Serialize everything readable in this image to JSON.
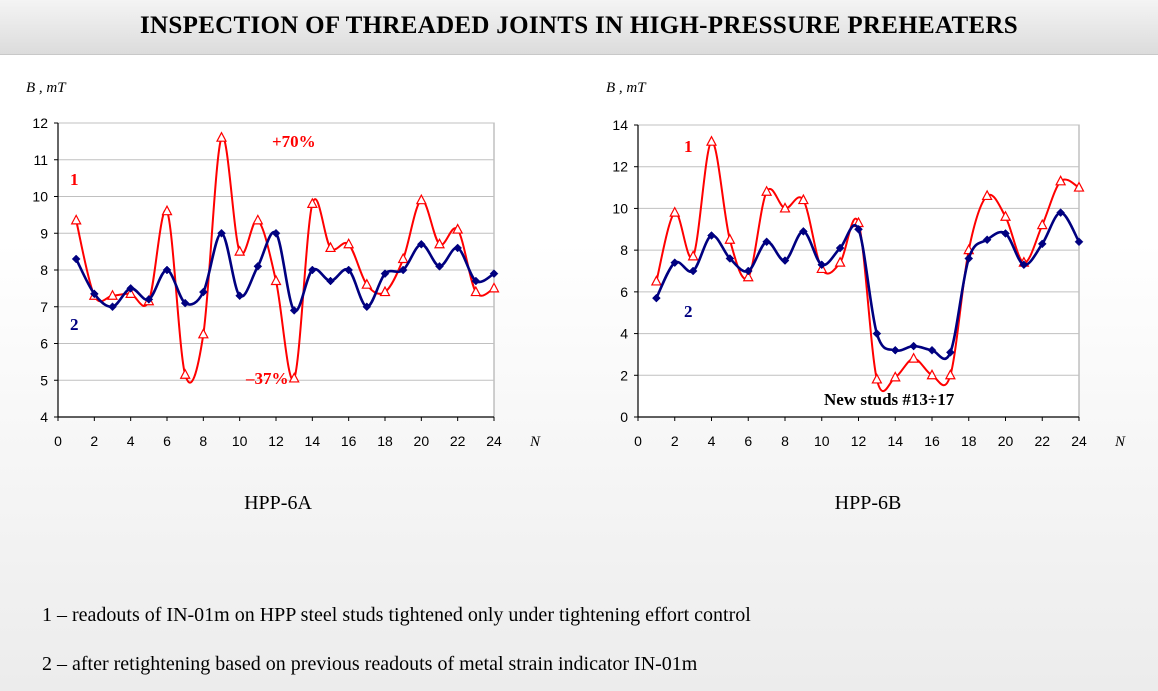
{
  "title": "INSPECTION OF THREADED JOINTS IN HIGH-PRESSURE PREHEATERS",
  "legend_lines": [
    "1 – readouts of IN-01m on HPP steel studs tightened only under tightening effort control",
    "2 – after retightening based on previous readouts of metal strain indicator IN-01m"
  ],
  "colors": {
    "series1": "#ff0000",
    "series2": "#000080",
    "grid": "#c0c0c0"
  },
  "chart_data": [
    {
      "type": "line",
      "caption": "HPP-6A",
      "ylabel": "B , mT",
      "xlabel": "N",
      "xlim": [
        0,
        24
      ],
      "ylim": [
        4,
        12
      ],
      "xticks": [
        0,
        2,
        4,
        6,
        8,
        10,
        12,
        14,
        16,
        18,
        20,
        22,
        24
      ],
      "yticks": [
        4,
        5,
        6,
        7,
        8,
        9,
        10,
        11,
        12
      ],
      "grid": true,
      "x": [
        1,
        2,
        3,
        4,
        5,
        6,
        7,
        8,
        9,
        10,
        11,
        12,
        13,
        14,
        15,
        16,
        17,
        18,
        19,
        20,
        21,
        22,
        23,
        24
      ],
      "series": [
        {
          "name": "1",
          "marker": "triangle-open",
          "values": [
            9.35,
            7.3,
            7.3,
            7.35,
            7.15,
            9.6,
            5.15,
            6.25,
            11.6,
            8.5,
            9.35,
            7.7,
            5.05,
            9.8,
            8.6,
            8.7,
            7.6,
            7.4,
            8.3,
            9.9,
            8.7,
            9.1,
            7.4,
            7.5
          ]
        },
        {
          "name": "2",
          "marker": "diamond",
          "values": [
            8.3,
            7.35,
            7.0,
            7.5,
            7.2,
            8.0,
            7.1,
            7.4,
            9.0,
            7.3,
            8.1,
            9.0,
            6.9,
            8.0,
            7.7,
            8.0,
            7.0,
            7.9,
            8.0,
            8.7,
            8.1,
            8.6,
            7.7,
            7.9
          ]
        }
      ],
      "annotations": [
        "1",
        "2",
        "+70%",
        "–37%"
      ]
    },
    {
      "type": "line",
      "caption": "HPP-6B",
      "ylabel": "B , mT",
      "xlabel": "N",
      "xlim": [
        0,
        24
      ],
      "ylim": [
        0,
        14
      ],
      "xticks": [
        0,
        2,
        4,
        6,
        8,
        10,
        12,
        14,
        16,
        18,
        20,
        22,
        24
      ],
      "yticks": [
        0,
        2,
        4,
        6,
        8,
        10,
        12,
        14
      ],
      "grid": true,
      "x": [
        1,
        2,
        3,
        4,
        5,
        6,
        7,
        8,
        9,
        10,
        11,
        12,
        13,
        14,
        15,
        16,
        17,
        18,
        19,
        20,
        21,
        22,
        23,
        24
      ],
      "series": [
        {
          "name": "1",
          "marker": "triangle-open",
          "values": [
            6.5,
            9.8,
            7.7,
            13.2,
            8.5,
            6.7,
            10.8,
            10.0,
            10.4,
            7.1,
            7.4,
            9.3,
            1.8,
            1.9,
            2.8,
            2.0,
            2.0,
            8.0,
            10.6,
            9.6,
            7.4,
            9.2,
            11.3,
            11.0
          ]
        },
        {
          "name": "2",
          "marker": "diamond",
          "values": [
            5.7,
            7.4,
            7.0,
            8.7,
            7.6,
            7.0,
            8.4,
            7.5,
            8.9,
            7.3,
            8.1,
            9.0,
            4.0,
            3.2,
            3.4,
            3.2,
            3.1,
            7.6,
            8.5,
            8.8,
            7.3,
            8.3,
            9.8,
            8.4
          ]
        }
      ],
      "annotations": [
        "1",
        "2",
        "New studs #13÷17"
      ]
    }
  ]
}
